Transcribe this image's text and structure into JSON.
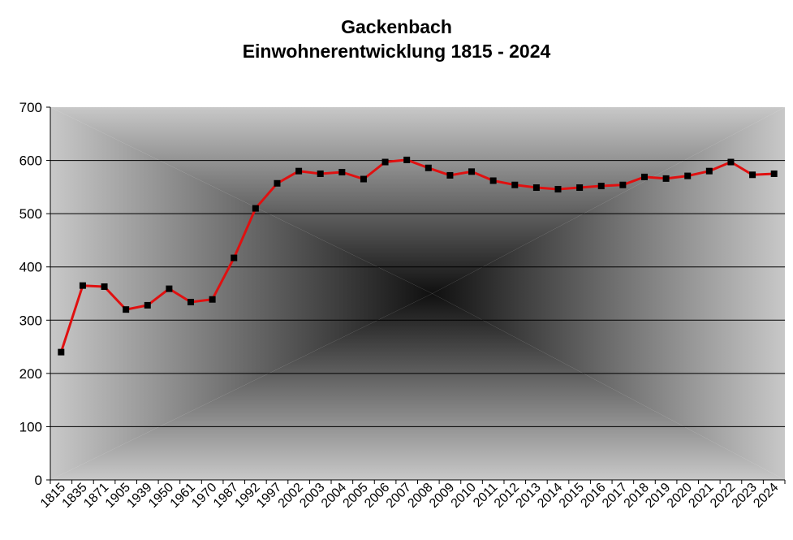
{
  "chart_data": {
    "type": "line",
    "title": "Gackenbach",
    "subtitle": "Einwohnerentwicklung 1815 - 2024",
    "xlabel": "",
    "ylabel": "",
    "ylim": [
      0,
      700
    ],
    "yticks": [
      0,
      100,
      200,
      300,
      400,
      500,
      600,
      700
    ],
    "grid": true,
    "legend": "none",
    "line_color": "#e01010",
    "marker_color": "#000000",
    "categories": [
      "1815",
      "1835",
      "1871",
      "1905",
      "1939",
      "1950",
      "1961",
      "1970",
      "1987",
      "1992",
      "1997",
      "2002",
      "2003",
      "2004",
      "2005",
      "2006",
      "2007",
      "2008",
      "2009",
      "2010",
      "2011",
      "2012",
      "2013",
      "2014",
      "2015",
      "2016",
      "2017",
      "2018",
      "2019",
      "2020",
      "2021",
      "2022",
      "2023",
      "2024"
    ],
    "series": [
      {
        "values": [
          240,
          365,
          363,
          320,
          328,
          359,
          334,
          339,
          417,
          510,
          557,
          580,
          575,
          578,
          565,
          597,
          601,
          586,
          572,
          579,
          562,
          554,
          549,
          546,
          549,
          552,
          554,
          569,
          566,
          571,
          580,
          597,
          573,
          575
        ]
      }
    ]
  }
}
